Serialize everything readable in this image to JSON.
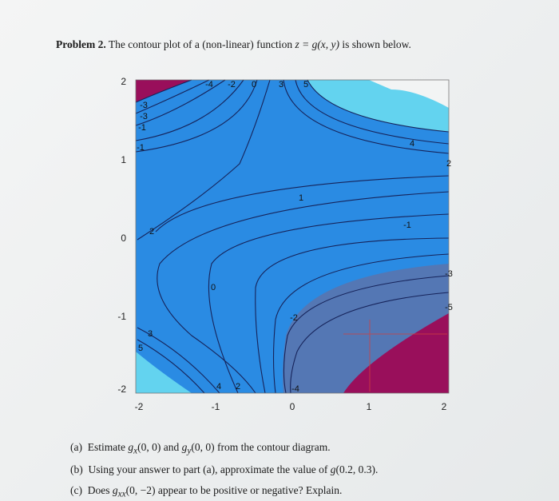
{
  "problem": {
    "label": "Problem 2.",
    "parts": [
      "The contour plot of a (non-linear) function ",
      "z = g(x, y)",
      " is shown below."
    ]
  },
  "figure": {
    "y_ticks": [
      "2",
      "1",
      "0",
      "-1",
      "-2"
    ],
    "x_ticks": [
      "-2",
      "-1",
      "0",
      "1",
      "2"
    ],
    "contour_labels": [
      "-4",
      "-2",
      "0",
      "3",
      "5",
      "-3",
      "-3",
      "-1",
      "-1",
      "4",
      "2",
      "1",
      "-1",
      "2",
      "-3",
      "0",
      "-2",
      "-5",
      "3",
      "5",
      "4",
      "2",
      "-4"
    ]
  },
  "questions": [
    {
      "label": "(a)",
      "parts": [
        "Estimate ",
        "g",
        "x",
        "(0, 0) and ",
        "g",
        "y",
        "(0, 0) from the contour diagram."
      ]
    },
    {
      "label": "(b)",
      "parts": [
        "Using your answer to part (a), approximate the value of ",
        "g",
        "(0.2, 0.3)."
      ]
    },
    {
      "label": "(c)",
      "parts": [
        "Does ",
        "g",
        "xx",
        "(0, −2) appear to be positive or negative? Explain."
      ]
    }
  ]
}
